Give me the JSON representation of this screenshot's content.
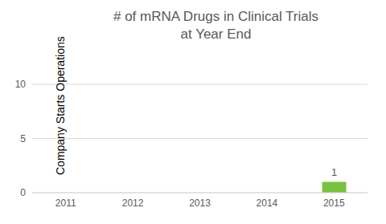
{
  "chart_data": {
    "type": "bar",
    "title": [
      "# of mRNA Drugs in Clinical Trials",
      "at Year End"
    ],
    "categories": [
      "2011",
      "2012",
      "2013",
      "2014",
      "2015"
    ],
    "values": [
      0,
      0,
      0,
      0,
      1
    ],
    "color": "#7ac142",
    "ylim": [
      0,
      10
    ],
    "yticks": [
      0,
      5,
      10
    ],
    "grid": true,
    "data_labels": true,
    "annotations": [
      {
        "text": "Company Starts Operations",
        "x": "2011"
      }
    ]
  }
}
